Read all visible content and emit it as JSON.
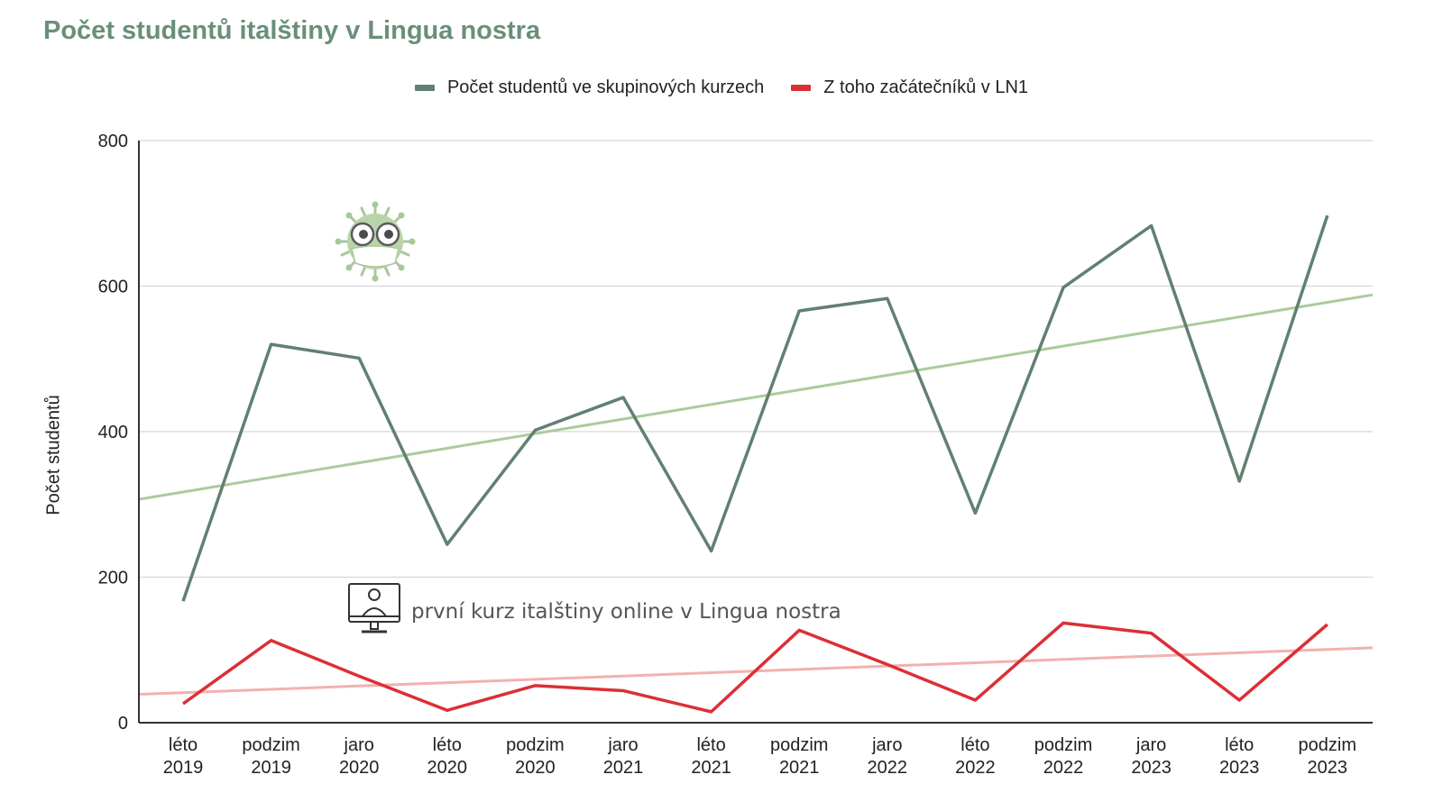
{
  "chart_data": {
    "type": "line",
    "title": "Počet studentů italštiny v Lingua nostra",
    "ylabel": "Počet studentů",
    "xlabel": "",
    "ylim": [
      0,
      800
    ],
    "yticks": [
      0,
      200,
      400,
      600,
      800
    ],
    "grid": true,
    "legend_placement": "top-center",
    "categories": [
      [
        "léto",
        "2019"
      ],
      [
        "podzim",
        "2019"
      ],
      [
        "jaro",
        "2020"
      ],
      [
        "léto",
        "2020"
      ],
      [
        "podzim",
        "2020"
      ],
      [
        "jaro",
        "2021"
      ],
      [
        "léto",
        "2021"
      ],
      [
        "podzim",
        "2021"
      ],
      [
        "jaro",
        "2022"
      ],
      [
        "léto",
        "2022"
      ],
      [
        "podzim",
        "2022"
      ],
      [
        "jaro",
        "2023"
      ],
      [
        "léto",
        "2023"
      ],
      [
        "podzim",
        "2023"
      ]
    ],
    "series": [
      {
        "name": "Počet studentů ve skupinových kurzech",
        "color": "#628071",
        "values": [
          167,
          520,
          501,
          245,
          402,
          447,
          236,
          566,
          583,
          288,
          598,
          683,
          332,
          697
        ],
        "trendline": {
          "color": "#aacb9e",
          "start": 307,
          "end": 588
        }
      },
      {
        "name": "Z toho začátečníků v LN1",
        "color": "#dc2f36",
        "values": [
          26,
          113,
          64,
          17,
          51,
          44,
          15,
          127,
          80,
          31,
          137,
          123,
          31,
          135
        ],
        "trendline": {
          "color": "#f4b1ad",
          "start": 39,
          "end": 103
        }
      }
    ],
    "annotations": [
      {
        "text": "první kurz italštiny online v Lingua nostra",
        "icon": "computer-user-icon",
        "category_index": 2
      },
      {
        "icon": "virus-mask-icon",
        "category_index": 2
      }
    ]
  }
}
